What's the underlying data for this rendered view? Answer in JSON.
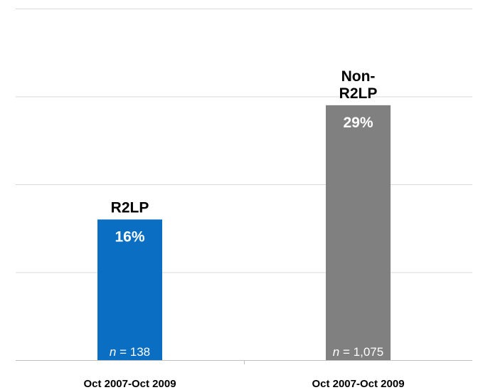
{
  "chart_data": {
    "type": "bar",
    "title": "",
    "xlabel": "",
    "ylabel": "",
    "ylim": [
      0,
      40
    ],
    "grid": true,
    "categories": [
      "Oct 2007-Oct 2009",
      "Oct 2007-Oct 2009"
    ],
    "bars": [
      {
        "label": "R2LP",
        "value": 16,
        "value_label": "16%",
        "n_prefix": "n",
        "n_value": " = 138",
        "color": "#0a6fc2"
      },
      {
        "label_lines": [
          "Non-",
          "R2LP"
        ],
        "value": 29,
        "value_label": "29%",
        "n_prefix": "n",
        "n_value": " = 1,075",
        "color": "#808080"
      }
    ],
    "colors": {
      "grid": "#d9d9d9",
      "axis": "#bfbfbf",
      "text": "#000000",
      "inner_text": "#ffffff"
    }
  }
}
